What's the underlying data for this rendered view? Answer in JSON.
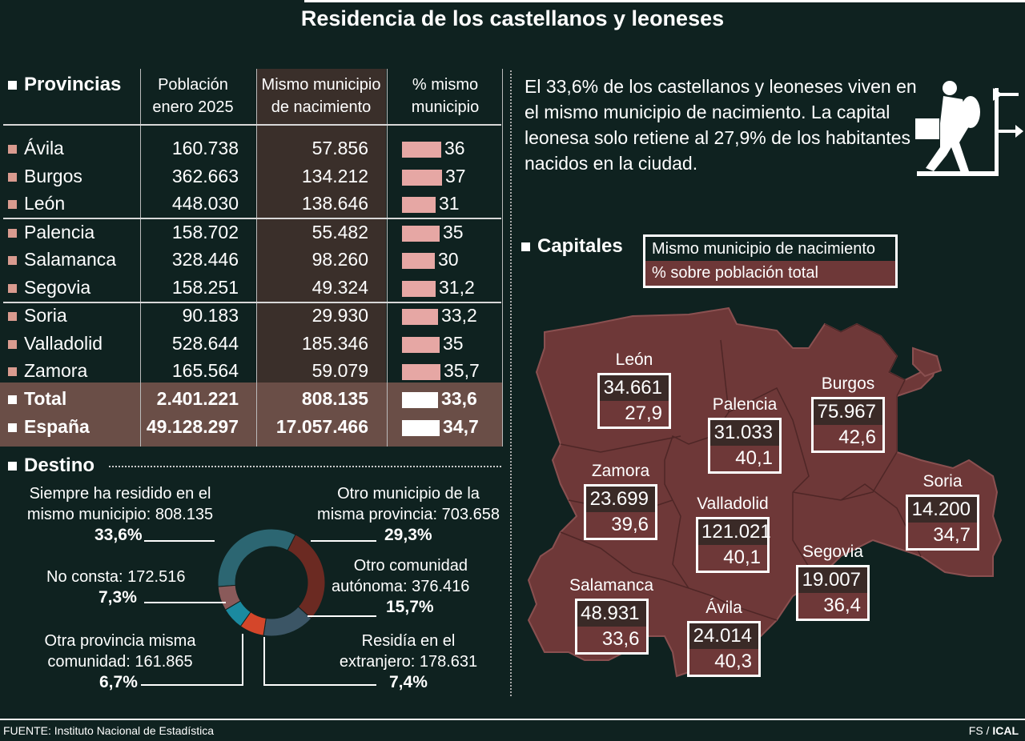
{
  "title": "Residencia de los castellanos y leoneses",
  "table": {
    "section": "Provincias",
    "col1": [
      "Población",
      "enero 2025"
    ],
    "col2": [
      "Mismo municipio",
      "de nacimiento"
    ],
    "col3": [
      "% mismo",
      "municipio"
    ],
    "rows": [
      {
        "name": "Ávila",
        "pop": "160.738",
        "same": "57.856",
        "pct": "36",
        "v": 36
      },
      {
        "name": "Burgos",
        "pop": "362.663",
        "same": "134.212",
        "pct": "37",
        "v": 37
      },
      {
        "name": "León",
        "pop": "448.030",
        "same": "138.646",
        "pct": "31",
        "v": 31
      },
      {
        "name": "Palencia",
        "pop": "158.702",
        "same": "55.482",
        "pct": "35",
        "v": 35
      },
      {
        "name": "Salamanca",
        "pop": "328.446",
        "same": "98.260",
        "pct": "30",
        "v": 30
      },
      {
        "name": "Segovia",
        "pop": "158.251",
        "same": "49.324",
        "pct": "31,2",
        "v": 31.2
      },
      {
        "name": "Soria",
        "pop": "90.183",
        "same": "29.930",
        "pct": "33,2",
        "v": 33.2
      },
      {
        "name": "Valladolid",
        "pop": "528.644",
        "same": "185.346",
        "pct": "35",
        "v": 35
      },
      {
        "name": "Zamora",
        "pop": "165.564",
        "same": "59.079",
        "pct": "35,7",
        "v": 35.7
      }
    ],
    "totals": [
      {
        "name": "Total",
        "pop": "2.401.221",
        "same": "808.135",
        "pct": "33,6",
        "v": 33.6
      },
      {
        "name": "España",
        "pop": "49.128.297",
        "same": "17.057.466",
        "pct": "34,7",
        "v": 34.7
      }
    ]
  },
  "note": "El 33,6% de los castellanos y leoneses viven en el mismo municipio de nacimiento. La capital leonesa solo retiene al 27,9% de los habitantes nacidos en la ciudad.",
  "destino": {
    "section": "Destino",
    "slices": [
      {
        "label": "Siempre ha residido en el mismo municipio: 808.135",
        "pct": "33,6%",
        "v": 33.6,
        "color": "#2c6672"
      },
      {
        "label": "Otro municipio de la misma provincia: 703.658",
        "pct": "29,3%",
        "v": 29.3,
        "color": "#6b2a22"
      },
      {
        "label": "Otro comunidad autónoma: 376.416",
        "pct": "15,7%",
        "v": 15.7,
        "color": "#3b5565"
      },
      {
        "label": "Residía en el extranjero: 178.631",
        "pct": "7,4%",
        "v": 7.4,
        "color": "#d4462a"
      },
      {
        "label": "Otra provincia misma comunidad: 161.865",
        "pct": "6,7%",
        "v": 6.7,
        "color": "#1b8aa0"
      },
      {
        "label": "No consta: 172.516",
        "pct": "7,3%",
        "v": 7.3,
        "color": "#8a5a5a"
      }
    ],
    "labels": {
      "a1": "Siempre ha residido en el",
      "a2": "mismo municipio: 808.135",
      "a3": "33,6%",
      "b1": "Otro municipio de la",
      "b2": "misma provincia: 703.658",
      "b3": "29,3%",
      "c1": "No consta: 172.516",
      "c2": "7,3%",
      "d1": "Otro comunidad",
      "d2": "autónoma: 376.416",
      "d3": "15,7%",
      "e1": "Otra provincia misma",
      "e2": "comunidad: 161.865",
      "e3": "6,7%",
      "f1": "Residía en el",
      "f2": "extranjero: 178.631",
      "f3": "7,4%"
    }
  },
  "capitales": {
    "section": "Capitales",
    "legend1": "Mismo municipio de nacimiento",
    "legend2": "% sobre población total",
    "cities": [
      {
        "name": "León",
        "a": "34.661",
        "b": "27,9"
      },
      {
        "name": "Palencia",
        "a": "31.033",
        "b": "40,1"
      },
      {
        "name": "Burgos",
        "a": "75.967",
        "b": "42,6"
      },
      {
        "name": "Zamora",
        "a": "23.699",
        "b": "39,6"
      },
      {
        "name": "Valladolid",
        "a": "121.021",
        "b": "40,1"
      },
      {
        "name": "Soria",
        "a": "14.200",
        "b": "34,7"
      },
      {
        "name": "Segovia",
        "a": "19.007",
        "b": "36,4"
      },
      {
        "name": "Salamanca",
        "a": "48.931",
        "b": "33,6"
      },
      {
        "name": "Ávila",
        "a": "24.014",
        "b": "40,3"
      }
    ]
  },
  "chart_data": [
    {
      "type": "table",
      "title": "Residencia de los castellanos y leoneses",
      "columns": [
        "Provincias",
        "Población enero 2025",
        "Mismo municipio de nacimiento",
        "% mismo municipio"
      ],
      "rows": [
        [
          "Ávila",
          160738,
          57856,
          36
        ],
        [
          "Burgos",
          362663,
          134212,
          37
        ],
        [
          "León",
          448030,
          138646,
          31
        ],
        [
          "Palencia",
          158702,
          55482,
          35
        ],
        [
          "Salamanca",
          328446,
          98260,
          30
        ],
        [
          "Segovia",
          158251,
          49324,
          31.2
        ],
        [
          "Soria",
          90183,
          29930,
          33.2
        ],
        [
          "Valladolid",
          528644,
          185346,
          35
        ],
        [
          "Zamora",
          165564,
          59079,
          35.7
        ],
        [
          "Total",
          2401221,
          808135,
          33.6
        ],
        [
          "España",
          49128297,
          17057466,
          34.7
        ]
      ]
    },
    {
      "type": "pie",
      "title": "Destino",
      "categories": [
        "Siempre ha residido en el mismo municipio",
        "Otro municipio de la misma provincia",
        "Otro comunidad autónoma",
        "Residía en el extranjero",
        "Otra provincia misma comunidad",
        "No consta"
      ],
      "values": [
        33.6,
        29.3,
        15.7,
        7.4,
        6.7,
        7.3
      ]
    }
  ],
  "footer": {
    "source": "FUENTE: Instituto Nacional de Estadística",
    "credit_a": "FS /",
    "credit_b": "ICAL"
  }
}
